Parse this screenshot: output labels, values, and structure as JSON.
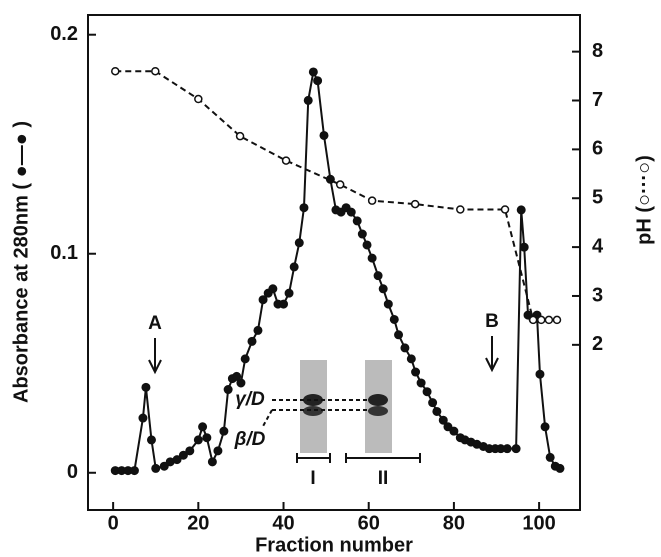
{
  "chart_data": {
    "type": "line",
    "x_label": "Fraction number",
    "y_label": "Absorbance at 280nm ( ●—● )",
    "y2_label": "pH (○···○)",
    "annotations": [
      "A",
      "B",
      "γ/D",
      "β/D",
      "I",
      "II"
    ],
    "xlim": [
      -5.9,
      109.6
    ],
    "xticks": [
      0,
      20,
      40,
      60,
      80,
      100
    ],
    "ylim": [
      -0.017,
      0.209
    ],
    "yticks": [
      0,
      0.1,
      0.2
    ],
    "y2lim": [
      -1.38,
      8.75
    ],
    "y2ticks": [
      2,
      3,
      4,
      5,
      6,
      7,
      8
    ],
    "series": [
      {
        "color": "#111111",
        "marker": "filled",
        "axis": "y",
        "x": [
          0.5,
          2,
          3.5,
          5,
          7,
          7.7,
          9,
          10,
          12,
          13.4,
          15,
          16.5,
          18,
          20,
          21,
          22,
          23.3,
          24.6,
          26,
          27,
          28,
          29,
          30,
          31,
          32.6,
          34,
          35.2,
          36.4,
          37.5,
          38.7,
          40,
          41.3,
          42.5,
          43.7,
          44.8,
          45.8,
          47,
          48,
          49.5,
          51,
          52.3,
          53.5,
          54.7,
          55.9,
          57.3,
          58.5,
          59.6,
          60.8,
          62.2,
          63.4,
          64.6,
          66,
          67,
          68.5,
          70,
          71,
          72.3,
          73.7,
          75,
          76,
          77.5,
          78.6,
          80,
          81.5,
          82.6,
          84,
          85.4,
          86.9,
          88.3,
          89.7,
          91,
          92.5,
          94.6,
          95.8,
          96.5,
          97.4,
          98.6,
          99.5,
          100.2,
          101.4,
          102.6,
          103.8,
          104.9
        ],
        "values": [
          0.001,
          0.001,
          0.001,
          0.001,
          0.025,
          0.039,
          0.015,
          0.002,
          0.003,
          0.005,
          0.006,
          0.008,
          0.01,
          0.015,
          0.021,
          0.016,
          0.005,
          0.01,
          0.019,
          0.038,
          0.043,
          0.044,
          0.041,
          0.052,
          0.06,
          0.065,
          0.079,
          0.082,
          0.084,
          0.077,
          0.077,
          0.082,
          0.094,
          0.105,
          0.121,
          0.17,
          0.183,
          0.179,
          0.154,
          0.134,
          0.12,
          0.119,
          0.121,
          0.119,
          0.115,
          0.109,
          0.104,
          0.098,
          0.09,
          0.084,
          0.077,
          0.07,
          0.063,
          0.057,
          0.052,
          0.046,
          0.041,
          0.037,
          0.032,
          0.028,
          0.024,
          0.021,
          0.019,
          0.016,
          0.015,
          0.014,
          0.013,
          0.012,
          0.011,
          0.011,
          0.011,
          0.011,
          0.011,
          0.12,
          0.103,
          0.072,
          0.07,
          0.072,
          0.045,
          0.021,
          0.007,
          0.003,
          0.002
        ]
      },
      {
        "color": "#111111",
        "marker": "open",
        "dashed": true,
        "axis": "y2",
        "x": [
          0.5,
          9.9,
          20,
          29.8,
          40.6,
          53.3,
          60.8,
          70.9,
          81.5,
          92,
          98.6,
          100.5,
          102.3,
          104.2
        ],
        "values": [
          7.6,
          7.6,
          7.03,
          6.27,
          5.77,
          5.28,
          4.95,
          4.88,
          4.77,
          4.77,
          2.51,
          2.51,
          2.51,
          2.51
        ]
      }
    ]
  }
}
